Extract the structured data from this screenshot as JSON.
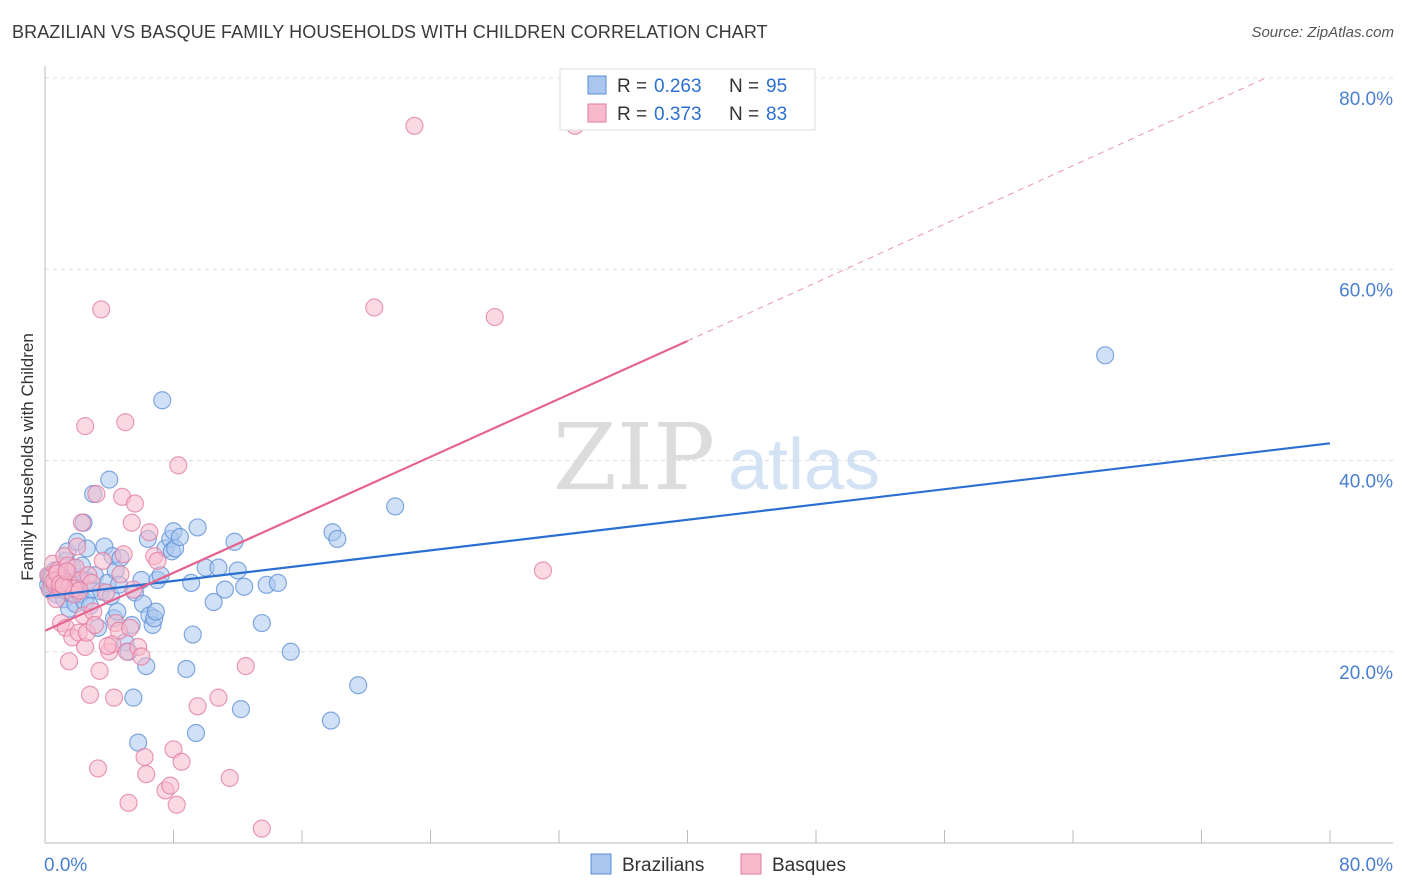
{
  "chart_data": {
    "type": "scatter",
    "title": "BRAZILIAN VS BASQUE FAMILY HOUSEHOLDS WITH CHILDREN CORRELATION CHART",
    "source": "Source: ZipAtlas.com",
    "xlabel": "",
    "ylabel": "Family Households with Children",
    "xlim": [
      0,
      80
    ],
    "ylim": [
      0,
      80
    ],
    "x_tick_labels": [
      "0.0%",
      "80.0%"
    ],
    "y_tick_values": [
      20,
      40,
      60,
      80
    ],
    "y_tick_labels": [
      "20.0%",
      "40.0%",
      "60.0%",
      "80.0%"
    ],
    "grid": true,
    "watermark": {
      "zip": "ZIP",
      "atlas": "atlas"
    },
    "stats": [
      {
        "r_label": "R =",
        "r_value": "0.263",
        "n_label": "N =",
        "n_value": "95"
      },
      {
        "r_label": "R =",
        "r_value": "0.373",
        "n_label": "N =",
        "n_value": "83"
      }
    ],
    "series": [
      {
        "name": "Brazilians",
        "color": "#5b8fd6",
        "fill": "#a9c6ef",
        "line_color": "#2b6fd1",
        "trend": {
          "x0": 0,
          "y0": 25.8,
          "x1": 80,
          "y1": 41.8
        },
        "points": [
          [
            0.2,
            27
          ],
          [
            0.3,
            28
          ],
          [
            0.4,
            26.5
          ],
          [
            0.5,
            27.5
          ],
          [
            0.6,
            28.5
          ],
          [
            0.7,
            26
          ],
          [
            0.8,
            27.2
          ],
          [
            0.9,
            28.2
          ],
          [
            1.0,
            26.8
          ],
          [
            1.1,
            27.6
          ],
          [
            1.2,
            25.5
          ],
          [
            1.3,
            29.5
          ],
          [
            1.4,
            30.5
          ],
          [
            1.5,
            24.5
          ],
          [
            1.6,
            26.2
          ],
          [
            1.7,
            28.8
          ],
          [
            1.8,
            27
          ],
          [
            1.9,
            25
          ],
          [
            2.0,
            31.5
          ],
          [
            2.1,
            27.8
          ],
          [
            2.2,
            26
          ],
          [
            2.3,
            29
          ],
          [
            2.4,
            33.5
          ],
          [
            2.5,
            25.2
          ],
          [
            2.6,
            30.8
          ],
          [
            2.7,
            27.4
          ],
          [
            2.8,
            24.8
          ],
          [
            2.9,
            26.5
          ],
          [
            3.0,
            36.5
          ],
          [
            3.1,
            28
          ],
          [
            3.3,
            22.5
          ],
          [
            3.5,
            26.3
          ],
          [
            3.7,
            31
          ],
          [
            3.9,
            27.2
          ],
          [
            4.0,
            38
          ],
          [
            4.1,
            25.8
          ],
          [
            4.2,
            30
          ],
          [
            4.3,
            23.5
          ],
          [
            4.4,
            28.5
          ],
          [
            4.5,
            24.2
          ],
          [
            4.6,
            27
          ],
          [
            4.7,
            29.8
          ],
          [
            5.0,
            21
          ],
          [
            5.2,
            20
          ],
          [
            5.4,
            22.8
          ],
          [
            5.5,
            15.2
          ],
          [
            5.6,
            26.2
          ],
          [
            5.8,
            10.5
          ],
          [
            6.0,
            27.5
          ],
          [
            6.1,
            25
          ],
          [
            6.3,
            18.5
          ],
          [
            6.4,
            31.8
          ],
          [
            6.5,
            23.8
          ],
          [
            6.7,
            22.8
          ],
          [
            6.8,
            23.5
          ],
          [
            6.9,
            24.2
          ],
          [
            7.0,
            27.5
          ],
          [
            7.2,
            28
          ],
          [
            7.3,
            46.3
          ],
          [
            7.5,
            30.8
          ],
          [
            7.8,
            31.8
          ],
          [
            7.9,
            30.5
          ],
          [
            8.0,
            32.6
          ],
          [
            8.1,
            30.8
          ],
          [
            8.4,
            32
          ],
          [
            8.8,
            18.2
          ],
          [
            9.1,
            27.2
          ],
          [
            9.2,
            21.8
          ],
          [
            9.4,
            11.5
          ],
          [
            9.5,
            33
          ],
          [
            10.0,
            28.8
          ],
          [
            10.5,
            25.2
          ],
          [
            10.8,
            28.8
          ],
          [
            11.2,
            26.5
          ],
          [
            11.8,
            31.5
          ],
          [
            12.0,
            28.5
          ],
          [
            12.2,
            14
          ],
          [
            12.4,
            26.8
          ],
          [
            13.5,
            23
          ],
          [
            13.8,
            27
          ],
          [
            14.5,
            27.2
          ],
          [
            15.3,
            20
          ],
          [
            17.8,
            12.8
          ],
          [
            17.9,
            32.5
          ],
          [
            18.2,
            31.8
          ],
          [
            19.5,
            16.5
          ],
          [
            21.8,
            35.2
          ],
          [
            66,
            51
          ],
          [
            0.25,
            27.8
          ],
          [
            0.45,
            26.8
          ],
          [
            0.65,
            27.3
          ],
          [
            0.85,
            26.6
          ],
          [
            1.05,
            27.9
          ],
          [
            1.25,
            26.4
          ],
          [
            1.45,
            27.7
          ]
        ]
      },
      {
        "name": "Basques",
        "color": "#e07ba0",
        "fill": "#f7b9cc",
        "line_color": "#e5648f",
        "trend": {
          "x0": 0,
          "y0": 22.2,
          "x1": 40,
          "y1": 52.5
        },
        "trend_dashed": {
          "x0": 40,
          "y0": 52.5,
          "x1": 76,
          "y1": 80
        },
        "points": [
          [
            0.2,
            28
          ],
          [
            0.3,
            26.5
          ],
          [
            0.4,
            27.8
          ],
          [
            0.5,
            29.2
          ],
          [
            0.6,
            27
          ],
          [
            0.7,
            25.5
          ],
          [
            0.8,
            28.5
          ],
          [
            0.9,
            26.8
          ],
          [
            1.0,
            23
          ],
          [
            1.1,
            27.5
          ],
          [
            1.2,
            30
          ],
          [
            1.3,
            22.5
          ],
          [
            1.4,
            29
          ],
          [
            1.5,
            19
          ],
          [
            1.6,
            27
          ],
          [
            1.7,
            21.5
          ],
          [
            1.8,
            26
          ],
          [
            1.9,
            28.8
          ],
          [
            2.0,
            31
          ],
          [
            2.1,
            22
          ],
          [
            2.2,
            27.5
          ],
          [
            2.3,
            33.5
          ],
          [
            2.4,
            23.8
          ],
          [
            2.5,
            20.5
          ],
          [
            2.6,
            22
          ],
          [
            2.7,
            28
          ],
          [
            2.8,
            15.5
          ],
          [
            2.9,
            27.2
          ],
          [
            3.0,
            24.2
          ],
          [
            3.1,
            22.8
          ],
          [
            3.2,
            36.5
          ],
          [
            3.3,
            7.8
          ],
          [
            3.4,
            18
          ],
          [
            3.5,
            55.8
          ],
          [
            3.6,
            29.5
          ],
          [
            3.8,
            26.2
          ],
          [
            4.0,
            20
          ],
          [
            4.2,
            20.8
          ],
          [
            4.3,
            15.2
          ],
          [
            4.4,
            23
          ],
          [
            4.6,
            22.2
          ],
          [
            4.8,
            36.2
          ],
          [
            4.9,
            30.2
          ],
          [
            5.0,
            44
          ],
          [
            5.1,
            20
          ],
          [
            5.2,
            4.2
          ],
          [
            5.3,
            22.5
          ],
          [
            5.4,
            33.5
          ],
          [
            5.5,
            26.5
          ],
          [
            5.6,
            35.5
          ],
          [
            5.8,
            20.5
          ],
          [
            6.0,
            19.5
          ],
          [
            6.2,
            9
          ],
          [
            6.3,
            7.2
          ],
          [
            6.5,
            32.5
          ],
          [
            6.8,
            30
          ],
          [
            7.0,
            29.5
          ],
          [
            7.5,
            5.5
          ],
          [
            7.8,
            6
          ],
          [
            8.0,
            9.8
          ],
          [
            8.2,
            4
          ],
          [
            8.3,
            39.5
          ],
          [
            8.5,
            8.5
          ],
          [
            9.5,
            14.3
          ],
          [
            10.8,
            15.2
          ],
          [
            11.5,
            6.8
          ],
          [
            12.5,
            18.5
          ],
          [
            13.5,
            1.5
          ],
          [
            20.5,
            56
          ],
          [
            23,
            75
          ],
          [
            28,
            55
          ],
          [
            31,
            28.5
          ],
          [
            33,
            75
          ],
          [
            2.5,
            43.6
          ],
          [
            1.8,
            26.6
          ],
          [
            0.55,
            27.4
          ],
          [
            0.75,
            28.2
          ],
          [
            0.95,
            27.1
          ],
          [
            1.15,
            26.9
          ],
          [
            1.35,
            28.4
          ],
          [
            2.15,
            26.4
          ],
          [
            3.9,
            20.6
          ],
          [
            4.7,
            28.1
          ]
        ]
      }
    ]
  }
}
